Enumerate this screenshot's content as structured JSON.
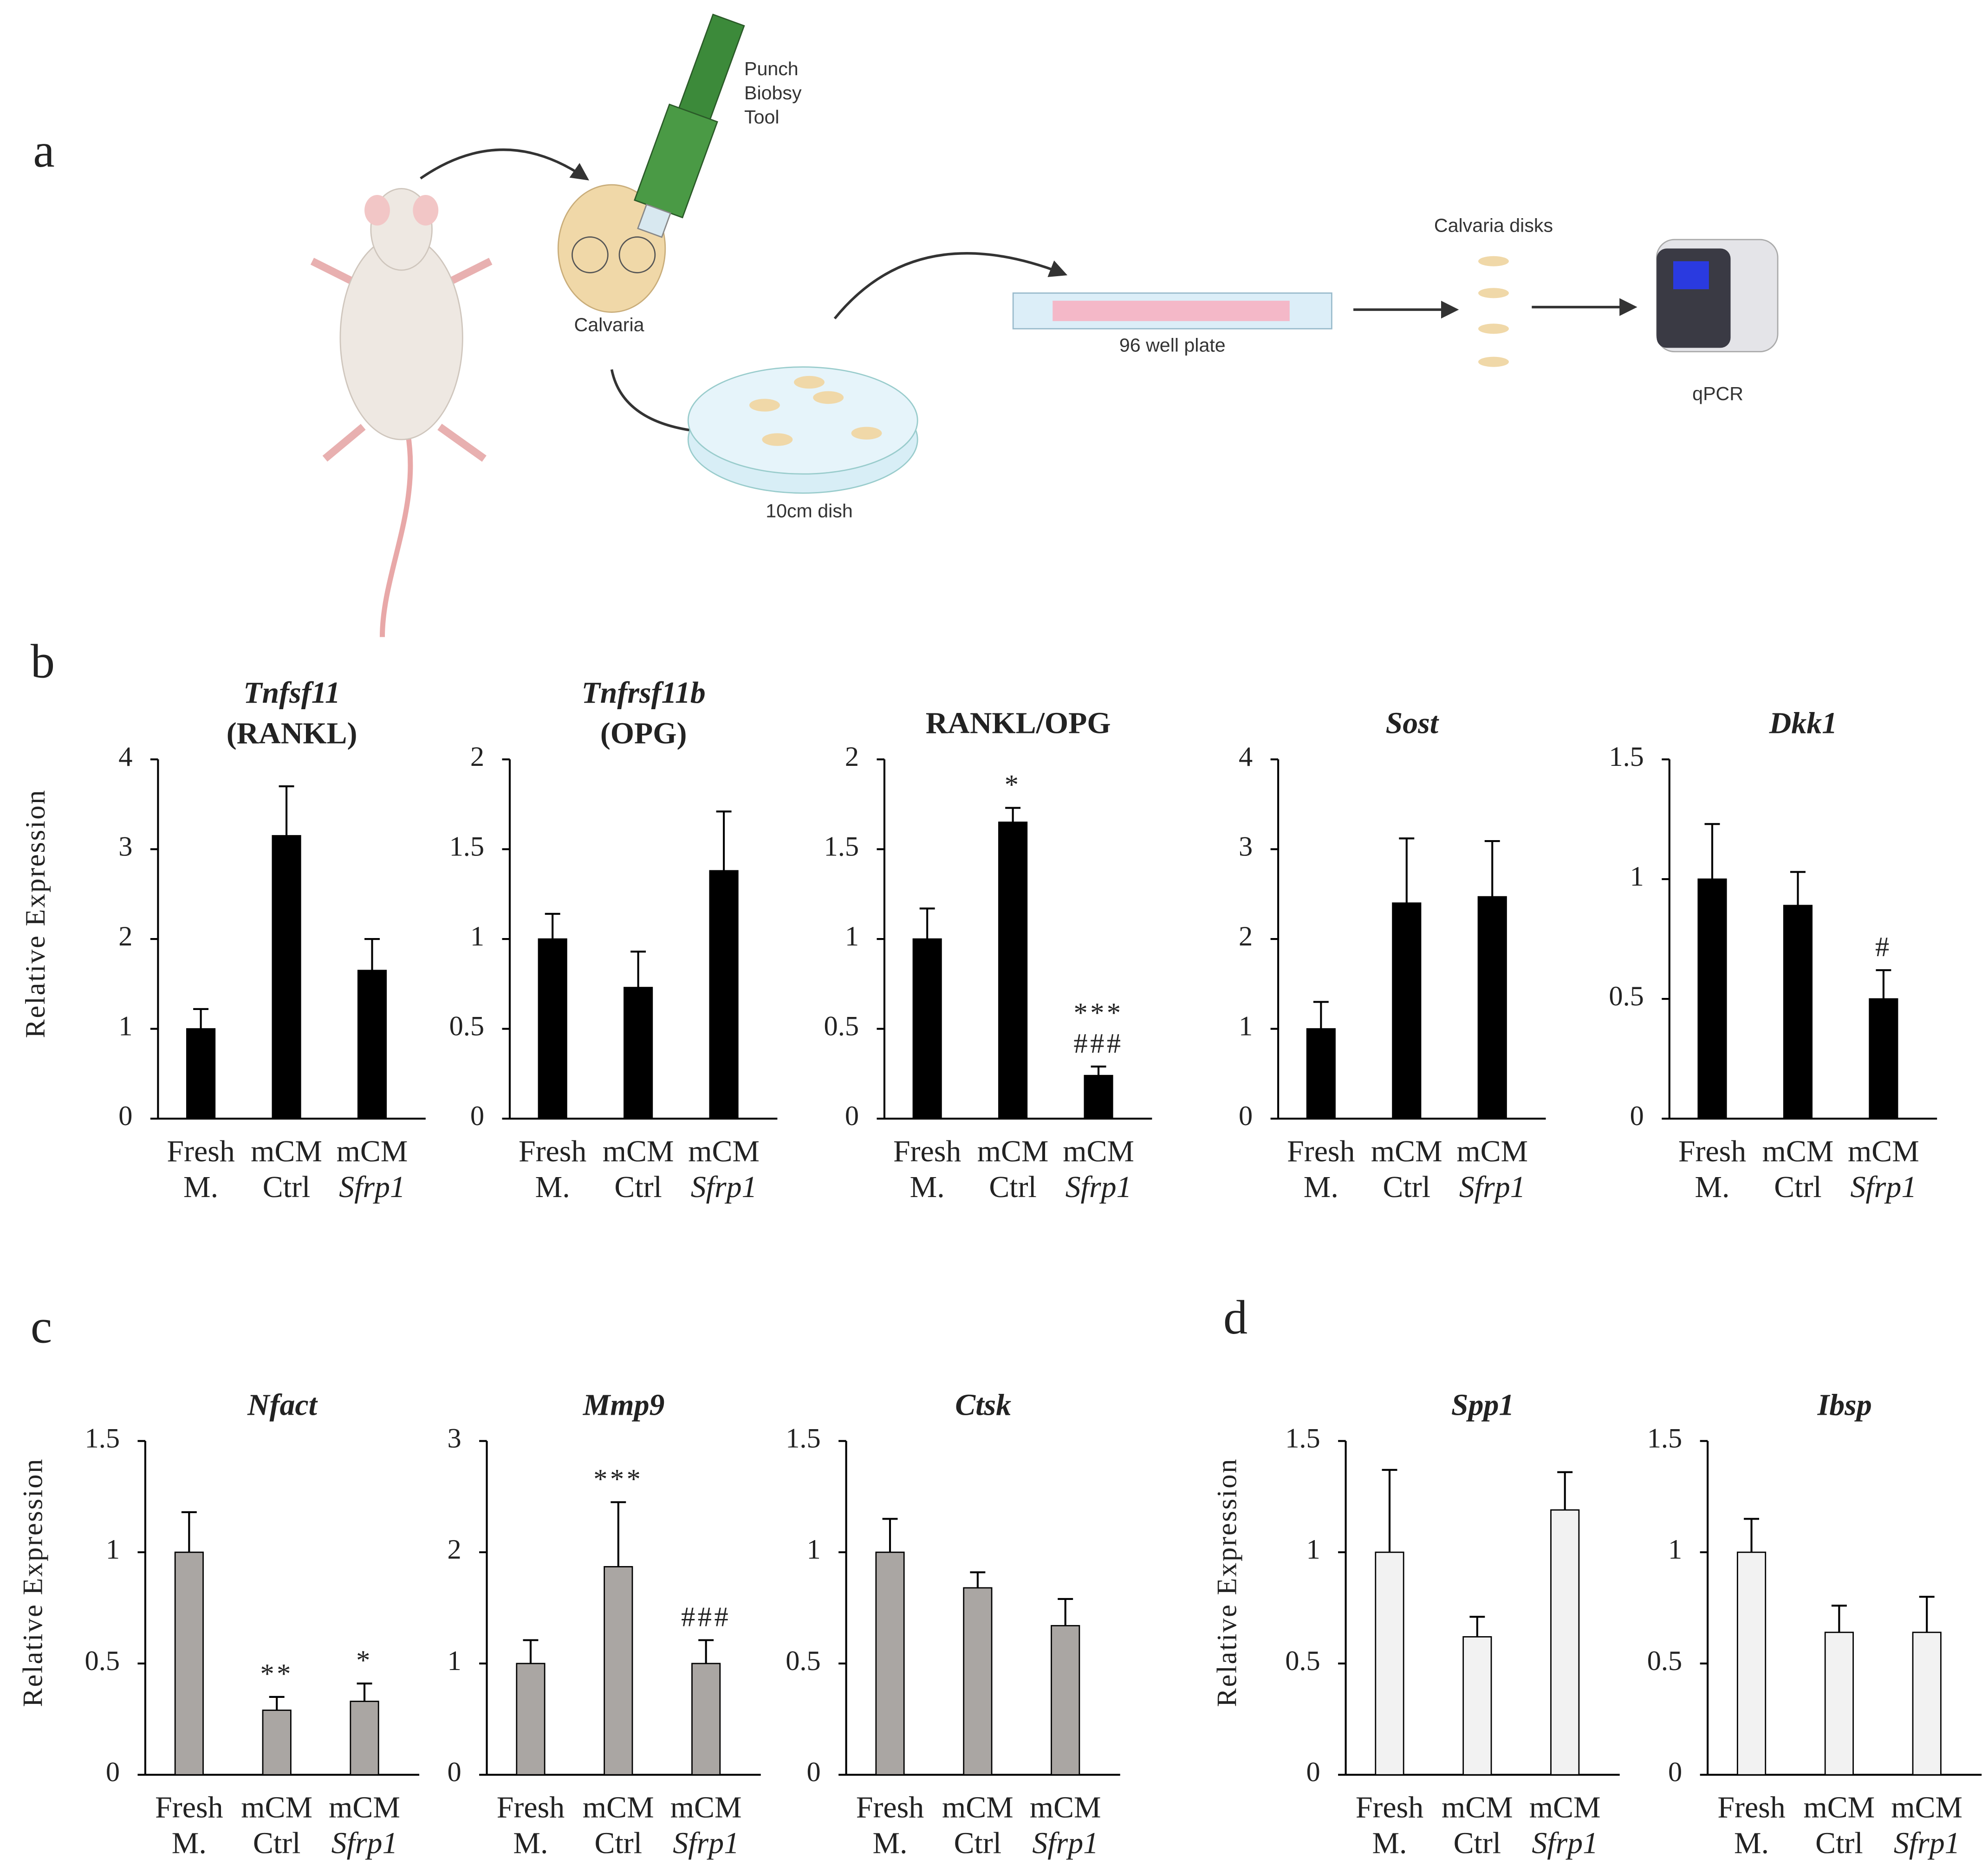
{
  "panels": [
    "a",
    "b",
    "c",
    "d"
  ],
  "diagram": {
    "punch_tool": [
      "Punch",
      "Biobsy",
      "Tool"
    ],
    "calvaria": "Calvaria",
    "dish": "10cm dish",
    "plate": "96 well plate",
    "disks": "Calvaria disks",
    "qpcr": "qPCR"
  },
  "chart_data": [
    {
      "type": "bar",
      "title": "Tnfsf11",
      "subtitle": "(RANKL)",
      "title_italic": true,
      "ylabel": "Relative Expression",
      "categories": [
        "Fresh M.",
        "mCM Ctrl",
        "mCM Sfrp1"
      ],
      "values": [
        1.0,
        3.15,
        1.65
      ],
      "errors": [
        0.22,
        0.55,
        0.35
      ],
      "color": "#000000",
      "ylim": [
        0,
        4
      ],
      "yticks": [
        0,
        1,
        2,
        3,
        4
      ]
    },
    {
      "type": "bar",
      "title": "Tnfrsf11b",
      "subtitle": "(OPG)",
      "title_italic": true,
      "categories": [
        "Fresh M.",
        "mCM Ctrl",
        "mCM Sfrp1"
      ],
      "values": [
        1.0,
        0.73,
        1.38
      ],
      "errors": [
        0.14,
        0.2,
        0.33
      ],
      "color": "#000000",
      "ylim": [
        0,
        2
      ],
      "yticks": [
        0,
        0.5,
        1,
        1.5,
        2
      ]
    },
    {
      "type": "bar",
      "title": "RANKL/OPG",
      "title_italic": false,
      "categories": [
        "Fresh M.",
        "mCM Ctrl",
        "mCM Sfrp1"
      ],
      "values": [
        1.0,
        1.65,
        0.24
      ],
      "errors": [
        0.17,
        0.08,
        0.05
      ],
      "annotations": [
        null,
        [
          "*"
        ],
        [
          "***",
          "###"
        ]
      ],
      "color": "#000000",
      "ylim": [
        0,
        2
      ],
      "yticks": [
        0,
        0.5,
        1,
        1.5,
        2
      ]
    },
    {
      "type": "bar",
      "title": "Sost",
      "title_italic": true,
      "categories": [
        "Fresh M.",
        "mCM Ctrl",
        "mCM Sfrp1"
      ],
      "values": [
        1.0,
        2.4,
        2.47
      ],
      "errors": [
        0.3,
        0.72,
        0.62
      ],
      "color": "#000000",
      "ylim": [
        0,
        4
      ],
      "yticks": [
        0,
        1,
        2,
        3,
        4
      ]
    },
    {
      "type": "bar",
      "title": "Dkk1",
      "title_italic": true,
      "categories": [
        "Fresh M.",
        "mCM Ctrl",
        "mCM Sfrp1"
      ],
      "values": [
        1.0,
        0.89,
        0.5
      ],
      "errors": [
        0.23,
        0.14,
        0.12
      ],
      "annotations": [
        null,
        null,
        [
          "#"
        ]
      ],
      "color": "#000000",
      "ylim": [
        0,
        1.5
      ],
      "yticks": [
        0,
        0.5,
        1,
        1.5
      ]
    },
    {
      "type": "bar",
      "title": "Nfact",
      "title_italic": true,
      "ylabel": "Relative Expression",
      "categories": [
        "Fresh M.",
        "mCM Ctrl",
        "mCM Sfrp1"
      ],
      "values": [
        1.0,
        0.29,
        0.33
      ],
      "errors": [
        0.18,
        0.06,
        0.08
      ],
      "annotations": [
        null,
        [
          "**"
        ],
        [
          "*"
        ]
      ],
      "color": "#aaa6a3",
      "ylim": [
        0,
        1.5
      ],
      "yticks": [
        0,
        0.5,
        1,
        1.5
      ]
    },
    {
      "type": "bar",
      "title": "Mmp9",
      "title_italic": true,
      "categories": [
        "Fresh M.",
        "mCM Ctrl",
        "mCM Sfrp1"
      ],
      "values": [
        1.0,
        1.87,
        1.0
      ],
      "errors": [
        0.21,
        0.58,
        0.21
      ],
      "annotations": [
        null,
        [
          "***"
        ],
        [
          "###"
        ]
      ],
      "color": "#aaa6a3",
      "ylim": [
        0,
        3
      ],
      "yticks": [
        0,
        1,
        2,
        3
      ]
    },
    {
      "type": "bar",
      "title": "Ctsk",
      "title_italic": true,
      "categories": [
        "Fresh M.",
        "mCM Ctrl",
        "mCM Sfrp1"
      ],
      "values": [
        1.0,
        0.84,
        0.67
      ],
      "errors": [
        0.15,
        0.07,
        0.12
      ],
      "color": "#aaa6a3",
      "ylim": [
        0,
        1.5
      ],
      "yticks": [
        0,
        0.5,
        1,
        1.5
      ]
    },
    {
      "type": "bar",
      "title": "Spp1",
      "title_italic": true,
      "ylabel": "Relative Expression",
      "categories": [
        "Fresh M.",
        "mCM Ctrl",
        "mCM Sfrp1"
      ],
      "values": [
        1.0,
        0.62,
        1.19
      ],
      "errors": [
        0.37,
        0.09,
        0.17
      ],
      "color": "#f2f2f2",
      "ylim": [
        0,
        1.5
      ],
      "yticks": [
        0,
        0.5,
        1,
        1.5
      ]
    },
    {
      "type": "bar",
      "title": "Ibsp",
      "title_italic": true,
      "categories": [
        "Fresh M.",
        "mCM Ctrl",
        "mCM Sfrp1"
      ],
      "values": [
        1.0,
        0.64,
        0.64
      ],
      "errors": [
        0.15,
        0.12,
        0.16
      ],
      "color": "#f2f2f2",
      "ylim": [
        0,
        1.5
      ],
      "yticks": [
        0,
        0.5,
        1,
        1.5
      ]
    }
  ]
}
